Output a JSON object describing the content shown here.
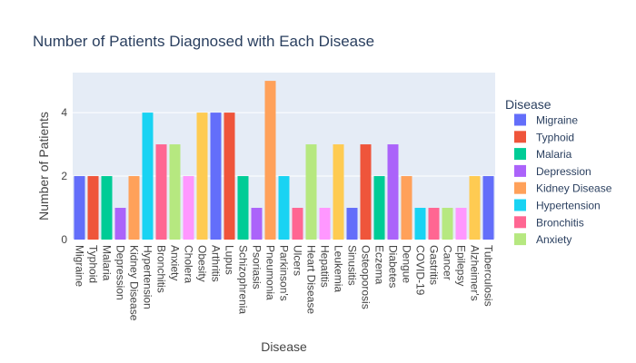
{
  "chart_data": {
    "type": "bar",
    "title": "Number of Patients Diagnosed with Each Disease",
    "xlabel": "Disease",
    "ylabel": "Number of Patients",
    "ylim": [
      0,
      5.26
    ],
    "yticks": [
      0,
      2,
      4
    ],
    "grid": true,
    "legend_title": "Disease",
    "legend_placement": "right",
    "palette": [
      "#636efa",
      "#EF553B",
      "#00cc96",
      "#ab63fa",
      "#FFA15A",
      "#19d3f3",
      "#FF6692",
      "#B6E880",
      "#FF97FF",
      "#FECB52"
    ],
    "categories": [
      "Migraine",
      "Typhoid",
      "Malaria",
      "Depression",
      "Kidney Disease",
      "Hypertension",
      "Bronchitis",
      "Anxiety",
      "Cholera",
      "Obesity",
      "Arthritis",
      "Lupus",
      "Schizophrenia",
      "Psoriasis",
      "Pneumonia",
      "Parkinson's",
      "Ulcers",
      "Heart Disease",
      "Hepatitis",
      "Leukemia",
      "Sinusitis",
      "Osteoporosis",
      "Eczema",
      "Diabetes",
      "Dengue",
      "COVID-19",
      "Gastritis",
      "Cancer",
      "Epilepsy",
      "Alzheimer's",
      "Tuberculosis"
    ],
    "values": [
      2,
      2,
      2,
      1,
      2,
      4,
      3,
      3,
      2,
      4,
      4,
      4,
      2,
      1,
      5,
      2,
      1,
      3,
      1,
      3,
      1,
      3,
      2,
      3,
      2,
      1,
      1,
      1,
      1,
      2,
      2
    ],
    "legend_visible": [
      "Migraine",
      "Typhoid",
      "Malaria",
      "Depression",
      "Kidney Disease",
      "Hypertension",
      "Bronchitis",
      "Anxiety"
    ]
  }
}
